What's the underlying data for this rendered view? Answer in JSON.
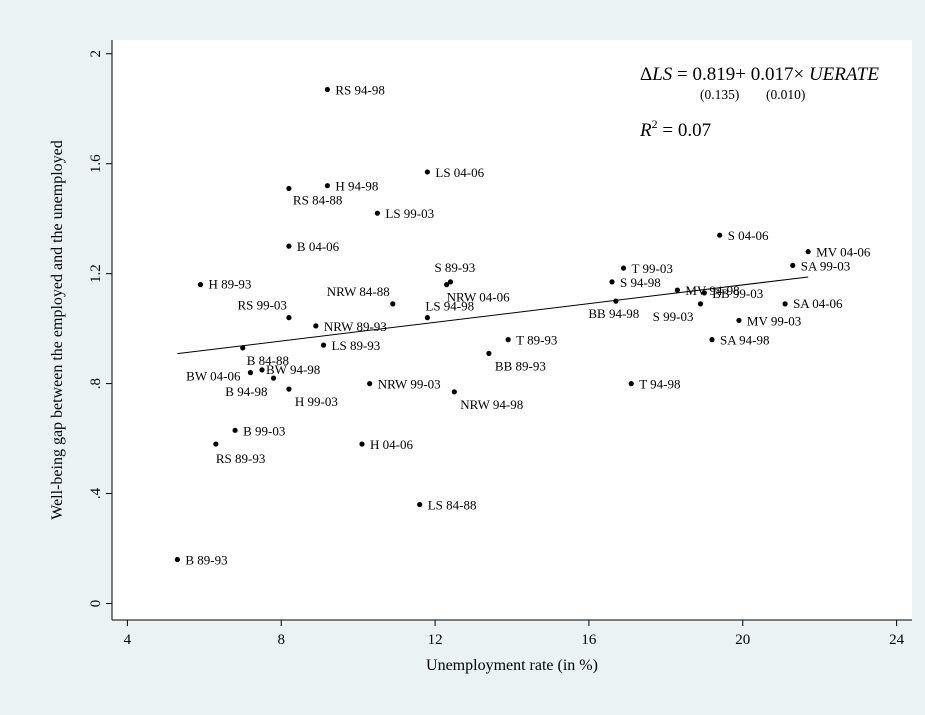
{
  "chart_data": {
    "type": "scatter",
    "title": "",
    "xlabel": "Unemployment rate (in %)",
    "ylabel": "Well-being gap between the employed and the unemployed",
    "xlim": [
      3.6,
      24.4
    ],
    "ylim": [
      -0.06,
      2.05
    ],
    "x_ticks": [
      "4",
      "8",
      "12",
      "16",
      "20",
      "24"
    ],
    "y_ticks": [
      "0",
      ".4",
      ".8",
      "1.2",
      "1.6",
      "2"
    ],
    "grid": "horizontal",
    "legend": "none",
    "colors": {
      "outer_background": "#eaf2f3",
      "plot_background": "#ffffff",
      "gridline": "#eaf2f3",
      "marker": "#000000"
    },
    "fit_line": {
      "x": [
        5.3,
        21.7
      ],
      "y": [
        0.909,
        1.188
      ]
    },
    "annotation": {
      "equation": {
        "delta": "Δ",
        "lhs": "LS",
        "equals": " = 0.819+ 0.017× ",
        "var": "UERATE",
        "se_const": "(0.135)",
        "se_slope": "(0.010)"
      },
      "r2": {
        "base": "R",
        "exp": "2",
        "rest": " = 0.07"
      }
    },
    "points": [
      {
        "label": "RS 94-98",
        "x": 9.2,
        "y": 1.87
      },
      {
        "label": "LS 04-06",
        "x": 11.8,
        "y": 1.57
      },
      {
        "label": "H 94-98",
        "x": 9.2,
        "y": 1.52
      },
      {
        "label": "RS 84-88",
        "x": 8.2,
        "y": 1.51
      },
      {
        "label": "LS 99-03",
        "x": 10.5,
        "y": 1.42
      },
      {
        "label": "B 04-06",
        "x": 8.2,
        "y": 1.3
      },
      {
        "label": "S 04-06",
        "x": 19.4,
        "y": 1.34
      },
      {
        "label": "MV 04-06",
        "x": 21.7,
        "y": 1.28
      },
      {
        "label": "SA 99-03",
        "x": 21.3,
        "y": 1.23
      },
      {
        "label": "T 99-03",
        "x": 16.9,
        "y": 1.22
      },
      {
        "label": "S 89-93",
        "x": 12.4,
        "y": 1.17
      },
      {
        "label": "H 89-93",
        "x": 5.9,
        "y": 1.16
      },
      {
        "label": "S 94-98",
        "x": 16.6,
        "y": 1.17
      },
      {
        "label": "NRW 04-06",
        "x": 12.3,
        "y": 1.16
      },
      {
        "label": "MV 94-98",
        "x": 18.3,
        "y": 1.14
      },
      {
        "label": "BB 99-03",
        "x": 19.0,
        "y": 1.13
      },
      {
        "label": "NRW 84-88",
        "x": 10.9,
        "y": 1.09
      },
      {
        "label": "BB 94-98",
        "x": 16.7,
        "y": 1.1
      },
      {
        "label": "S 99-03",
        "x": 18.9,
        "y": 1.09
      },
      {
        "label": "SA 04-06",
        "x": 21.1,
        "y": 1.09
      },
      {
        "label": "RS 99-03",
        "x": 8.2,
        "y": 1.04
      },
      {
        "label": "LS 94-98",
        "x": 11.8,
        "y": 1.04
      },
      {
        "label": "MV 99-03",
        "x": 19.9,
        "y": 1.03
      },
      {
        "label": "NRW 89-93",
        "x": 8.9,
        "y": 1.01
      },
      {
        "label": "T 89-93",
        "x": 13.9,
        "y": 0.96
      },
      {
        "label": "SA 94-98",
        "x": 19.2,
        "y": 0.96
      },
      {
        "label": "LS 89-93",
        "x": 9.1,
        "y": 0.94
      },
      {
        "label": "B 84-88",
        "x": 7.0,
        "y": 0.93
      },
      {
        "label": "BB 89-93",
        "x": 13.4,
        "y": 0.91
      },
      {
        "label": "BW 94-98",
        "x": 7.5,
        "y": 0.85
      },
      {
        "label": "BW 04-06",
        "x": 7.2,
        "y": 0.84
      },
      {
        "label": "B 94-98",
        "x": 7.8,
        "y": 0.82
      },
      {
        "label": "NRW 99-03",
        "x": 10.3,
        "y": 0.8
      },
      {
        "label": "T 94-98",
        "x": 17.1,
        "y": 0.8
      },
      {
        "label": "H 99-03",
        "x": 8.2,
        "y": 0.78
      },
      {
        "label": "NRW 94-98",
        "x": 12.5,
        "y": 0.77
      },
      {
        "label": "B 99-03",
        "x": 6.8,
        "y": 0.63
      },
      {
        "label": "RS 89-93",
        "x": 6.3,
        "y": 0.58
      },
      {
        "label": "H 04-06",
        "x": 10.1,
        "y": 0.58
      },
      {
        "label": "LS 84-88",
        "x": 11.6,
        "y": 0.36
      },
      {
        "label": "B 89-93",
        "x": 5.3,
        "y": 0.16
      }
    ]
  }
}
